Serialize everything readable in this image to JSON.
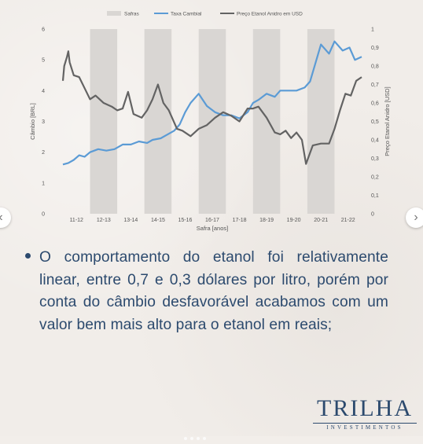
{
  "chart_data": {
    "type": "line",
    "legend": [
      "Safras",
      "Taxa Cambial",
      "Preço Etanol Anidro em USD"
    ],
    "legend_position": "top",
    "xlabel": "Safra [anos]",
    "ylabel_left": "Câmbio [BRL]",
    "ylabel_right": "Preço Etanol Anidro [USD]",
    "categories": [
      "11-12",
      "12-13",
      "13-14",
      "14-15",
      "15-16",
      "16-17",
      "17-18",
      "18-19",
      "19-20",
      "20-21",
      "21-22"
    ],
    "y_left_ticks": [
      "0",
      "1",
      "2",
      "3",
      "4",
      "5",
      "6"
    ],
    "y_right_ticks": [
      "0",
      "0,1",
      "0,2",
      "0,3",
      "0,4",
      "0,5",
      "0,6",
      "0,7",
      "0,8",
      "0,9",
      "1"
    ],
    "y_left_range": [
      0,
      6
    ],
    "y_right_range": [
      0,
      1
    ],
    "x_range": [
      0,
      11
    ],
    "shaded_bands": [
      [
        1,
        2
      ],
      [
        3,
        4
      ],
      [
        5,
        6
      ],
      [
        7,
        8
      ],
      [
        9,
        10
      ]
    ],
    "series": [
      {
        "name": "Taxa Cambial",
        "axis": "left",
        "color": "#5b9bd5",
        "x": [
          0,
          0.2,
          0.4,
          0.6,
          0.8,
          1.0,
          1.3,
          1.6,
          1.9,
          2.2,
          2.5,
          2.8,
          3.1,
          3.3,
          3.6,
          3.9,
          4.1,
          4.3,
          4.5,
          4.7,
          5.0,
          5.3,
          5.6,
          5.9,
          6.2,
          6.5,
          6.8,
          7.0,
          7.2,
          7.5,
          7.8,
          8.0,
          8.3,
          8.6,
          8.9,
          9.1,
          9.3,
          9.5,
          9.8,
          10.0,
          10.3,
          10.55,
          10.75,
          11.0
        ],
        "y": [
          1.6,
          1.65,
          1.75,
          1.9,
          1.85,
          2.0,
          2.1,
          2.05,
          2.1,
          2.25,
          2.25,
          2.35,
          2.3,
          2.4,
          2.45,
          2.6,
          2.7,
          2.9,
          3.3,
          3.6,
          3.9,
          3.5,
          3.3,
          3.2,
          3.2,
          3.1,
          3.3,
          3.6,
          3.7,
          3.9,
          3.8,
          4.0,
          4.0,
          4.0,
          4.1,
          4.3,
          4.9,
          5.5,
          5.2,
          5.6,
          5.3,
          5.4,
          5.0,
          5.1
        ]
      },
      {
        "name": "Preço Etanol Anidro em USD",
        "axis": "right",
        "color": "#636363",
        "x": [
          0,
          0.05,
          0.15,
          0.2,
          0.25,
          0.4,
          0.6,
          0.8,
          1.0,
          1.2,
          1.5,
          1.8,
          2.0,
          2.2,
          2.4,
          2.6,
          2.9,
          3.1,
          3.3,
          3.5,
          3.7,
          3.9,
          4.2,
          4.4,
          4.7,
          5.0,
          5.3,
          5.6,
          5.9,
          6.2,
          6.5,
          6.8,
          7.0,
          7.2,
          7.5,
          7.8,
          8.0,
          8.2,
          8.4,
          8.6,
          8.8,
          8.95,
          9.1,
          9.2,
          9.5,
          9.8,
          10.0,
          10.2,
          10.4,
          10.6,
          10.8,
          11.0
        ],
        "y": [
          0.72,
          0.8,
          0.85,
          0.88,
          0.82,
          0.75,
          0.74,
          0.68,
          0.62,
          0.64,
          0.6,
          0.58,
          0.56,
          0.57,
          0.66,
          0.54,
          0.52,
          0.56,
          0.62,
          0.7,
          0.6,
          0.56,
          0.46,
          0.45,
          0.42,
          0.46,
          0.48,
          0.52,
          0.55,
          0.53,
          0.5,
          0.57,
          0.57,
          0.58,
          0.52,
          0.44,
          0.43,
          0.45,
          0.41,
          0.44,
          0.4,
          0.27,
          0.33,
          0.37,
          0.38,
          0.38,
          0.46,
          0.56,
          0.65,
          0.64,
          0.72,
          0.74
        ]
      }
    ]
  },
  "text": {
    "bullet": "O comportamento do etanol foi relativamente linear, entre 0,7 e 0,3 dólares por litro, porém por conta do câmbio desfavorável acabamos com um valor bem mais alto para o etanol em reais;"
  },
  "logo": {
    "word": "TRILHA",
    "sub": "INVESTIMENTOS"
  },
  "nav": {
    "prev_icon": "chevron-left-icon",
    "next_icon": "chevron-right-icon"
  }
}
